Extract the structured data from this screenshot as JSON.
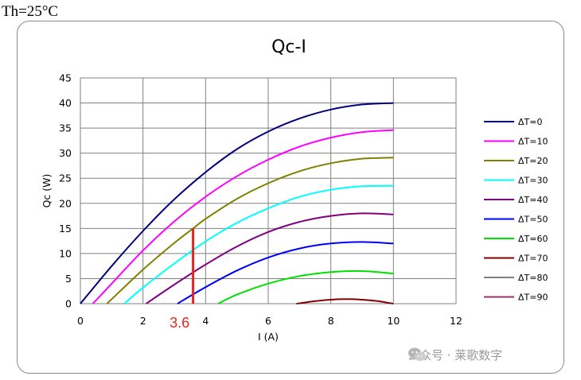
{
  "heading": "Th=25°C",
  "chart_data": {
    "type": "line",
    "title": "Qc-I",
    "xlabel": "I (A)",
    "ylabel": "Qc (W)",
    "xlim": [
      0,
      12
    ],
    "ylim": [
      0,
      45
    ],
    "xticks": [
      0,
      2,
      4,
      6,
      8,
      10,
      12
    ],
    "yticks": [
      0,
      5,
      10,
      15,
      20,
      25,
      30,
      35,
      40,
      45
    ],
    "grid": true,
    "legend_position": "right",
    "series": [
      {
        "name": "ΔT=0",
        "color": "#000080",
        "x": [
          0,
          1,
          2,
          3,
          4,
          5,
          6,
          7,
          8,
          9,
          10
        ],
        "y": [
          0,
          7.5,
          14.5,
          20.8,
          26.2,
          30.8,
          34.3,
          36.9,
          38.7,
          39.7,
          40.0
        ]
      },
      {
        "name": "ΔT=10",
        "color": "#ff00ff",
        "x": [
          0.4,
          1,
          2,
          3,
          4,
          5,
          6,
          7,
          8,
          9,
          10
        ],
        "y": [
          0,
          4.0,
          10.6,
          16.4,
          21.3,
          25.4,
          28.7,
          31.3,
          33.1,
          34.2,
          34.6
        ]
      },
      {
        "name": "ΔT=20",
        "color": "#808000",
        "x": [
          0.85,
          2,
          3,
          3.6,
          4,
          5,
          6,
          7,
          8,
          9,
          10
        ],
        "y": [
          0,
          6.8,
          12.1,
          15.0,
          16.9,
          20.9,
          24.0,
          26.4,
          28.0,
          28.9,
          29.1
        ]
      },
      {
        "name": "ΔT=30",
        "color": "#00ffff",
        "x": [
          1.4,
          2,
          3,
          4,
          5,
          6,
          7,
          8,
          9,
          10
        ],
        "y": [
          0,
          3.2,
          8.0,
          12.4,
          16.1,
          19.0,
          21.3,
          22.7,
          23.4,
          23.5
        ]
      },
      {
        "name": "ΔT=40",
        "color": "#800080",
        "x": [
          2.1,
          3,
          4,
          5,
          6,
          7,
          8,
          9,
          10
        ],
        "y": [
          0,
          3.8,
          7.8,
          11.4,
          14.3,
          16.3,
          17.5,
          18.0,
          17.8
        ]
      },
      {
        "name": "ΔT=50",
        "color": "#0000ff",
        "x": [
          3.1,
          4,
          5,
          6,
          7,
          8,
          9,
          10
        ],
        "y": [
          0,
          3.3,
          6.6,
          9.2,
          11.0,
          12.0,
          12.3,
          12.0
        ]
      },
      {
        "name": "ΔT=60",
        "color": "#00e000",
        "x": [
          4.4,
          5,
          6,
          7,
          8,
          9,
          10
        ],
        "y": [
          0,
          1.8,
          4.0,
          5.5,
          6.3,
          6.5,
          6.0
        ]
      },
      {
        "name": "ΔT=70",
        "color": "#800000",
        "x": [
          6.9,
          7.5,
          8,
          8.5,
          9,
          9.5,
          10
        ],
        "y": [
          0,
          0.5,
          0.8,
          0.9,
          0.8,
          0.5,
          0
        ]
      },
      {
        "name": "ΔT=80",
        "color": "#808080",
        "x": [],
        "y": []
      },
      {
        "name": "ΔT=90",
        "color": "#993366",
        "x": [],
        "y": []
      }
    ],
    "annotation": {
      "text": "3.6",
      "x": 3.6,
      "y_from": 0,
      "y_to": 15.0,
      "color": "#e8231f"
    }
  },
  "watermark": {
    "text": "公众号 · 莱歌数字",
    "icon": "wechat-icon"
  }
}
